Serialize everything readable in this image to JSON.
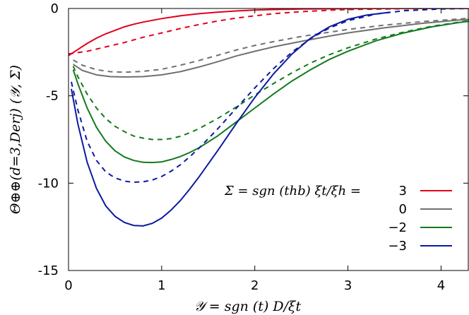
{
  "chart_data": {
    "type": "line",
    "xlabel": "𝒴 = sgn (t) D/ξt",
    "ylabel": "Θ⊕⊕(d=3,Derj) (𝒴, Σ)",
    "xlim": [
      0,
      4.3
    ],
    "ylim": [
      -15,
      0
    ],
    "xticks": [
      "0",
      "1",
      "2",
      "3",
      "4"
    ],
    "yticks": [
      "0",
      "-5",
      "-10",
      "-15"
    ],
    "legend_title": "Σ = sgn (thb) ξt/ξh =",
    "legend_position": "right-middle",
    "grid": false,
    "line_styles": {
      "solid": "solid",
      "dashed": "dashed"
    },
    "series": [
      {
        "name": "3",
        "color": "#e3001b",
        "solid": {
          "x": [
            0,
            0.1,
            0.2,
            0.3,
            0.4,
            0.5,
            0.6,
            0.7,
            0.8,
            1.0,
            1.2,
            1.4,
            1.6,
            1.8,
            2.0,
            2.2,
            2.5,
            3.0,
            3.5,
            4.0,
            4.3
          ],
          "y": [
            -2.7,
            -2.35,
            -2.0,
            -1.7,
            -1.45,
            -1.25,
            -1.05,
            -0.9,
            -0.78,
            -0.58,
            -0.42,
            -0.3,
            -0.21,
            -0.14,
            -0.09,
            -0.06,
            -0.03,
            -0.01,
            0,
            0,
            0
          ]
        },
        "dashed": {
          "x": [
            0,
            0.2,
            0.4,
            0.6,
            0.8,
            1.0,
            1.2,
            1.4,
            1.6,
            1.8,
            2.0,
            2.2,
            2.5,
            2.8,
            3.0,
            3.5,
            4.0,
            4.3
          ],
          "y": [
            -2.6,
            -2.45,
            -2.2,
            -1.95,
            -1.65,
            -1.4,
            -1.15,
            -0.92,
            -0.72,
            -0.55,
            -0.42,
            -0.3,
            -0.18,
            -0.1,
            -0.06,
            -0.02,
            0,
            0
          ]
        }
      },
      {
        "name": "0",
        "color": "#707070",
        "solid": {
          "x": [
            0.05,
            0.15,
            0.3,
            0.45,
            0.6,
            0.8,
            1.0,
            1.2,
            1.4,
            1.6,
            1.8,
            2.0,
            2.2,
            2.5,
            2.8,
            3.0,
            3.4,
            3.8,
            4.2,
            4.3
          ],
          "y": [
            -3.2,
            -3.55,
            -3.8,
            -3.9,
            -3.92,
            -3.9,
            -3.8,
            -3.62,
            -3.35,
            -3.05,
            -2.72,
            -2.45,
            -2.2,
            -1.88,
            -1.58,
            -1.4,
            -1.1,
            -0.85,
            -0.66,
            -0.63
          ]
        },
        "dashed": {
          "x": [
            0.05,
            0.15,
            0.3,
            0.45,
            0.6,
            0.8,
            1.0,
            1.2,
            1.4,
            1.6,
            1.8,
            2.0,
            2.2,
            2.5,
            2.8,
            3.0,
            3.4,
            3.8,
            4.2,
            4.3
          ],
          "y": [
            -2.95,
            -3.25,
            -3.5,
            -3.62,
            -3.65,
            -3.6,
            -3.48,
            -3.25,
            -2.98,
            -2.68,
            -2.38,
            -2.12,
            -1.9,
            -1.6,
            -1.36,
            -1.2,
            -0.95,
            -0.75,
            -0.6,
            -0.56
          ]
        }
      },
      {
        "name": "−2",
        "color": "#137a1c",
        "solid": {
          "x": [
            0.05,
            0.1,
            0.2,
            0.3,
            0.4,
            0.5,
            0.6,
            0.7,
            0.8,
            0.9,
            1.0,
            1.1,
            1.2,
            1.3,
            1.4,
            1.6,
            1.8,
            2.0,
            2.2,
            2.4,
            2.6,
            2.8,
            3.0,
            3.3,
            3.6,
            3.9,
            4.2,
            4.3
          ],
          "y": [
            -3.5,
            -4.3,
            -5.7,
            -6.8,
            -7.6,
            -8.15,
            -8.5,
            -8.7,
            -8.8,
            -8.82,
            -8.78,
            -8.65,
            -8.48,
            -8.25,
            -7.98,
            -7.3,
            -6.5,
            -5.7,
            -4.9,
            -4.15,
            -3.5,
            -2.92,
            -2.45,
            -1.85,
            -1.4,
            -1.05,
            -0.8,
            -0.73
          ]
        },
        "dashed": {
          "x": [
            0.05,
            0.1,
            0.2,
            0.3,
            0.4,
            0.5,
            0.6,
            0.7,
            0.8,
            0.9,
            1.0,
            1.1,
            1.2,
            1.3,
            1.4,
            1.6,
            1.8,
            2.0,
            2.2,
            2.4,
            2.6,
            2.8,
            3.0,
            3.3,
            3.6,
            3.9,
            4.2,
            4.3
          ],
          "y": [
            -3.3,
            -3.9,
            -4.9,
            -5.7,
            -6.3,
            -6.75,
            -7.05,
            -7.3,
            -7.42,
            -7.5,
            -7.5,
            -7.45,
            -7.32,
            -7.12,
            -6.88,
            -6.3,
            -5.65,
            -4.95,
            -4.3,
            -3.68,
            -3.12,
            -2.65,
            -2.25,
            -1.75,
            -1.35,
            -1.02,
            -0.78,
            -0.7
          ]
        }
      },
      {
        "name": "−3",
        "color": "#0c1aa0",
        "solid": {
          "x": [
            0.03,
            0.1,
            0.2,
            0.3,
            0.4,
            0.5,
            0.6,
            0.7,
            0.8,
            0.9,
            1.0,
            1.1,
            1.2,
            1.3,
            1.4,
            1.6,
            1.8,
            2.0,
            2.2,
            2.4,
            2.6,
            2.8,
            3.0,
            3.2,
            3.45
          ],
          "y": [
            -4.6,
            -6.6,
            -8.8,
            -10.3,
            -11.3,
            -11.9,
            -12.25,
            -12.42,
            -12.45,
            -12.3,
            -12.0,
            -11.55,
            -11.0,
            -10.35,
            -9.65,
            -8.15,
            -6.6,
            -5.1,
            -3.75,
            -2.6,
            -1.7,
            -1.05,
            -0.62,
            -0.38,
            -0.22
          ]
        },
        "dashed": {
          "x": [
            0.03,
            0.1,
            0.2,
            0.3,
            0.4,
            0.5,
            0.6,
            0.7,
            0.8,
            0.9,
            1.0,
            1.1,
            1.2,
            1.3,
            1.4,
            1.6,
            1.8,
            2.0,
            2.2,
            2.4,
            2.6,
            2.8,
            3.0,
            3.3,
            3.6,
            4.0,
            4.3
          ],
          "y": [
            -4.2,
            -5.8,
            -7.6,
            -8.7,
            -9.35,
            -9.7,
            -9.88,
            -9.95,
            -9.92,
            -9.82,
            -9.62,
            -9.32,
            -8.95,
            -8.5,
            -8.0,
            -6.9,
            -5.72,
            -4.55,
            -3.45,
            -2.5,
            -1.72,
            -1.12,
            -0.7,
            -0.32,
            -0.13,
            -0.03,
            0
          ]
        }
      }
    ]
  }
}
